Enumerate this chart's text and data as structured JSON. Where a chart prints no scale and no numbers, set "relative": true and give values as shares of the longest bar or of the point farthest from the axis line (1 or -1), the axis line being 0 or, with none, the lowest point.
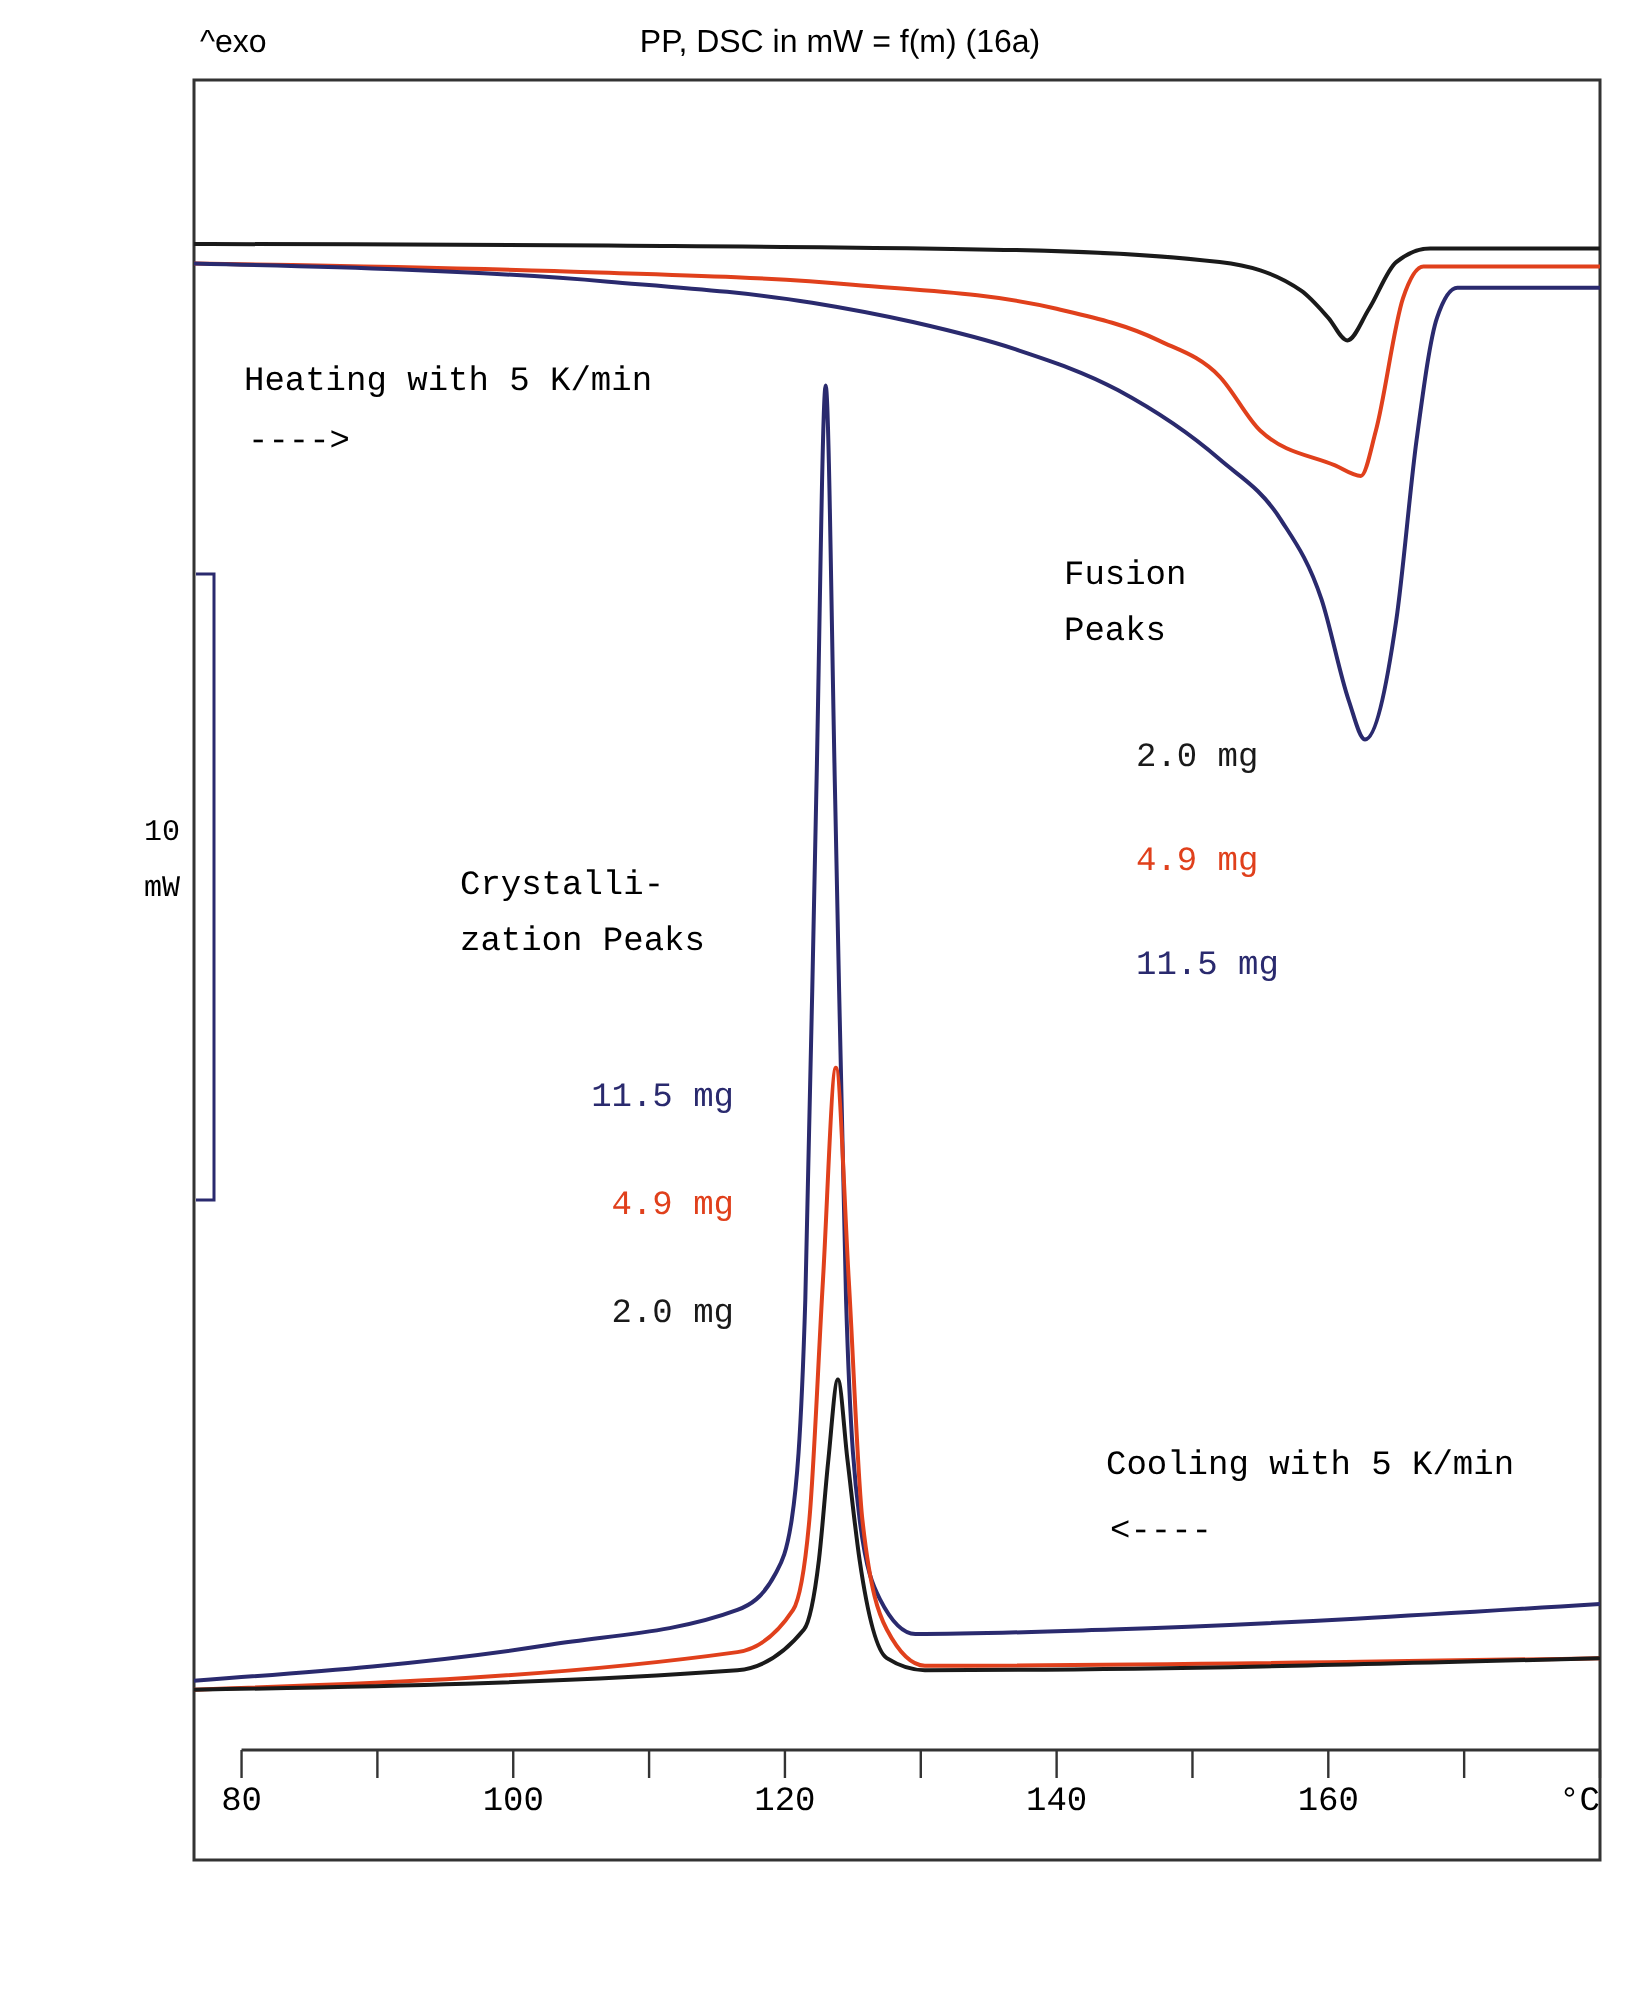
{
  "chart_data": {
    "type": "line",
    "title": "PP, DSC in mW = f(m)   (16a)",
    "relative": true,
    "xlim": [
      76.5,
      180
    ],
    "xticks": [
      80,
      {
        "value": 90,
        "label": null
      },
      100,
      {
        "value": 110,
        "label": null
      },
      120,
      {
        "value": 130,
        "label": null
      },
      140,
      {
        "value": 150,
        "label": null
      },
      160,
      {
        "value": 170,
        "label": null
      },
      {
        "value": 180,
        "label": "°C"
      }
    ],
    "grid": false,
    "marker": "none",
    "line_style": "solid",
    "annotations": [
      "^exo",
      "Heating with 5 K/min",
      "---->",
      "Fusion\nPeaks",
      "Crystalli-\nzation Peaks",
      "Cooling with 5 K/min",
      "<----",
      "10\nmW",
      "11.5 mg",
      "4.9 mg",
      "2.0 mg"
    ],
    "series": [
      {
        "name": "2.0 mg",
        "color": "#1a1a1a",
        "x": [
          76.5,
          107,
          137,
          152,
          158,
          160,
          161.4,
          163,
          165,
          167.5,
          180
        ],
        "values": [
          1.0,
          0.999,
          0.996,
          0.988,
          0.969,
          0.951,
          0.936,
          0.957,
          0.988,
          0.997,
          0.997
        ]
      },
      {
        "name": "4.9 mg",
        "color": "#e0401c",
        "x": [
          76.5,
          103,
          125,
          140,
          147.5,
          152,
          155,
          160.5,
          162.4,
          163.5,
          165.5,
          167,
          180
        ],
        "values": [
          0.987,
          0.982,
          0.973,
          0.957,
          0.936,
          0.912,
          0.876,
          0.853,
          0.846,
          0.876,
          0.964,
          0.985,
          0.985
        ]
      },
      {
        "name": "11.5 mg",
        "color": "#2a2a6e",
        "x": [
          76.5,
          107,
          122,
          129.5,
          137,
          144.5,
          152,
          156.5,
          159.5,
          161.5,
          162.7,
          165,
          166.5,
          168,
          169.5,
          180
        ],
        "values": [
          0.987,
          0.975,
          0.961,
          0.948,
          0.93,
          0.903,
          0.857,
          0.817,
          0.764,
          0.697,
          0.671,
          0.75,
          0.87,
          0.951,
          0.971,
          0.971
        ]
      },
      {
        "color": "#2a2a6e",
        "x": [
          76.5,
          102.8,
          116.5,
          119.3,
          120.5,
          121.5,
          122.3,
          123,
          123.7,
          124.5,
          125.5,
          127,
          129.6,
          144,
          180
        ],
        "values": [
          0.046,
          0.07,
          0.093,
          0.117,
          0.153,
          0.299,
          0.631,
          0.906,
          0.631,
          0.299,
          0.153,
          0.1,
          0.077,
          0.08,
          0.097
        ]
      },
      {
        "color": "#e0401c",
        "x": [
          76.5,
          116.5,
          120.6,
          121.8,
          122.8,
          123.75,
          124.7,
          125.7,
          127.5,
          130.3,
          180
        ],
        "values": [
          0.04,
          0.065,
          0.093,
          0.153,
          0.312,
          0.453,
          0.312,
          0.153,
          0.08,
          0.056,
          0.061
        ]
      },
      {
        "color": "#1a1a1a",
        "x": [
          76.5,
          116.5,
          121.4,
          122.5,
          123.2,
          123.9,
          124.6,
          125.5,
          127.5,
          130.3,
          180
        ],
        "values": [
          0.04,
          0.053,
          0.08,
          0.126,
          0.193,
          0.246,
          0.193,
          0.126,
          0.061,
          0.053,
          0.061
        ]
      }
    ]
  }
}
